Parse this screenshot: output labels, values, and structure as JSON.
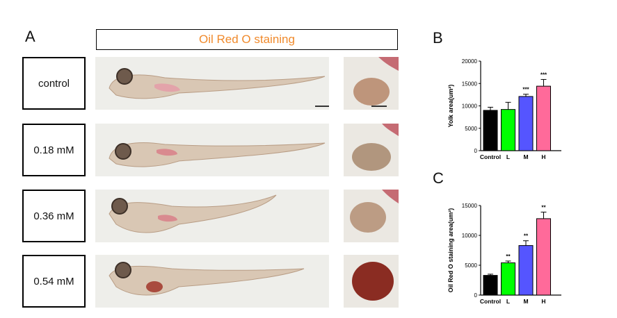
{
  "panel_a": {
    "letter": "A",
    "title": "Oil Red O staining",
    "rows": [
      {
        "label": "control"
      },
      {
        "label": "0.18 mM"
      },
      {
        "label": "0.36 mM"
      },
      {
        "label": "0.54 mM"
      }
    ]
  },
  "panel_b": {
    "letter": "B"
  },
  "panel_c": {
    "letter": "C"
  },
  "colors": {
    "control": "#000000",
    "L": "#00ff00",
    "M": "#5555ff",
    "H": "#ff6a9a",
    "title": "#f08a2c"
  },
  "chart_data": [
    {
      "type": "bar",
      "categories": [
        "Control",
        "L",
        "M",
        "H"
      ],
      "values": [
        9000,
        9200,
        12100,
        14400
      ],
      "errors": [
        700,
        1600,
        500,
        1500
      ],
      "significance": [
        "",
        "",
        "***",
        "***"
      ],
      "ylabel": "Yolk area(um²)",
      "ylim": [
        0,
        20000
      ],
      "yticks": [
        "0",
        "5000",
        "10000",
        "15000",
        "20000"
      ]
    },
    {
      "type": "bar",
      "categories": [
        "Control",
        "L",
        "M",
        "H"
      ],
      "values": [
        3300,
        5400,
        8300,
        12800
      ],
      "errors": [
        200,
        300,
        800,
        1100
      ],
      "significance": [
        "",
        "**",
        "**",
        "**"
      ],
      "ylabel": "Oil Red O staining area(um²)",
      "ylim": [
        0,
        15000
      ],
      "yticks": [
        "0",
        "5000",
        "10000",
        "15000"
      ]
    }
  ]
}
